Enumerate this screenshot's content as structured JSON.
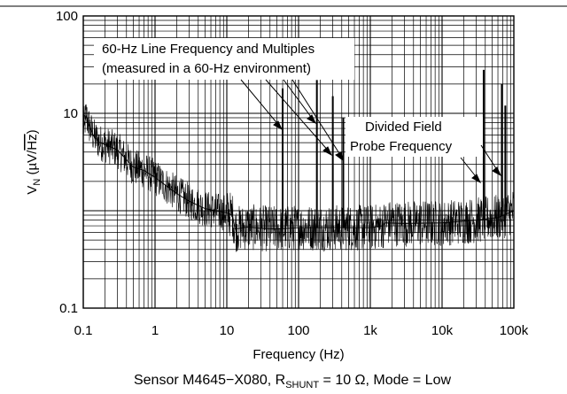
{
  "chart_data": {
    "type": "line",
    "x_scale": "log",
    "y_scale": "log",
    "xlim": [
      0.1,
      100000
    ],
    "ylim": [
      0.1,
      100
    ],
    "x_ticks": [
      {
        "value": 0.1,
        "label": "0.1"
      },
      {
        "value": 1,
        "label": "1"
      },
      {
        "value": 10,
        "label": "10"
      },
      {
        "value": 100,
        "label": "100"
      },
      {
        "value": 1000,
        "label": "1k"
      },
      {
        "value": 10000,
        "label": "10k"
      },
      {
        "value": 100000,
        "label": "100k"
      }
    ],
    "y_ticks": [
      {
        "value": 0.1,
        "label": "0.1"
      },
      {
        "value": 10,
        "label": "10"
      },
      {
        "value": 100,
        "label": "100"
      }
    ],
    "grid": true,
    "xlabel": "Frequency (Hz)",
    "ylabel": {
      "main": "V",
      "sub": "N",
      "rest": " (µV/",
      "sqrt": "Hz",
      "close": ")"
    },
    "caption": {
      "pre": "Sensor M4645−X080, R",
      "sub": "SHUNT",
      "post": " = 10 Ω, Mode = Low"
    },
    "annotations": [
      {
        "lines": [
          "60-Hz Line Frequency and Multiples",
          "(measured in a 60-Hz environment)"
        ]
      },
      {
        "lines": [
          "Divided Field",
          "Probe Frequency"
        ]
      }
    ],
    "series": [
      {
        "values": [
          {
            "x": 0.1,
            "y": 7.0
          },
          {
            "x": 0.11,
            "y": 9.5
          },
          {
            "x": 0.12,
            "y": 7.5
          },
          {
            "x": 0.14,
            "y": 5.8
          },
          {
            "x": 0.17,
            "y": 5.0
          },
          {
            "x": 0.2,
            "y": 4.8
          },
          {
            "x": 0.3,
            "y": 4.2
          },
          {
            "x": 0.5,
            "y": 2.8
          },
          {
            "x": 0.7,
            "y": 2.6
          },
          {
            "x": 1,
            "y": 2.2
          },
          {
            "x": 2,
            "y": 1.5
          },
          {
            "x": 3,
            "y": 1.25
          },
          {
            "x": 5,
            "y": 1.05
          },
          {
            "x": 7,
            "y": 1.0
          },
          {
            "x": 10,
            "y": 0.95
          },
          {
            "x": 12,
            "y": 0.9
          },
          {
            "x": 13,
            "y": 0.65
          },
          {
            "x": 20,
            "y": 0.68
          },
          {
            "x": 30,
            "y": 0.66
          },
          {
            "x": 50,
            "y": 0.65
          },
          {
            "x": 100,
            "y": 0.67
          },
          {
            "x": 300,
            "y": 0.67
          },
          {
            "x": 1000,
            "y": 0.67
          },
          {
            "x": 1500,
            "y": 0.7
          },
          {
            "x": 1600,
            "y": 0.75
          },
          {
            "x": 3000,
            "y": 0.74
          },
          {
            "x": 10000,
            "y": 0.75
          },
          {
            "x": 30000,
            "y": 0.8
          },
          {
            "x": 60000,
            "y": 0.85
          },
          {
            "x": 100000,
            "y": 1.0
          }
        ],
        "spikes": [
          {
            "x": 60,
            "y": 18
          },
          {
            "x": 180,
            "y": 22
          },
          {
            "x": 300,
            "y": 15
          },
          {
            "x": 420,
            "y": 9
          },
          {
            "x": 38000,
            "y": 28
          },
          {
            "x": 68000,
            "y": 20
          },
          {
            "x": 76000,
            "y": 12
          }
        ]
      }
    ]
  }
}
